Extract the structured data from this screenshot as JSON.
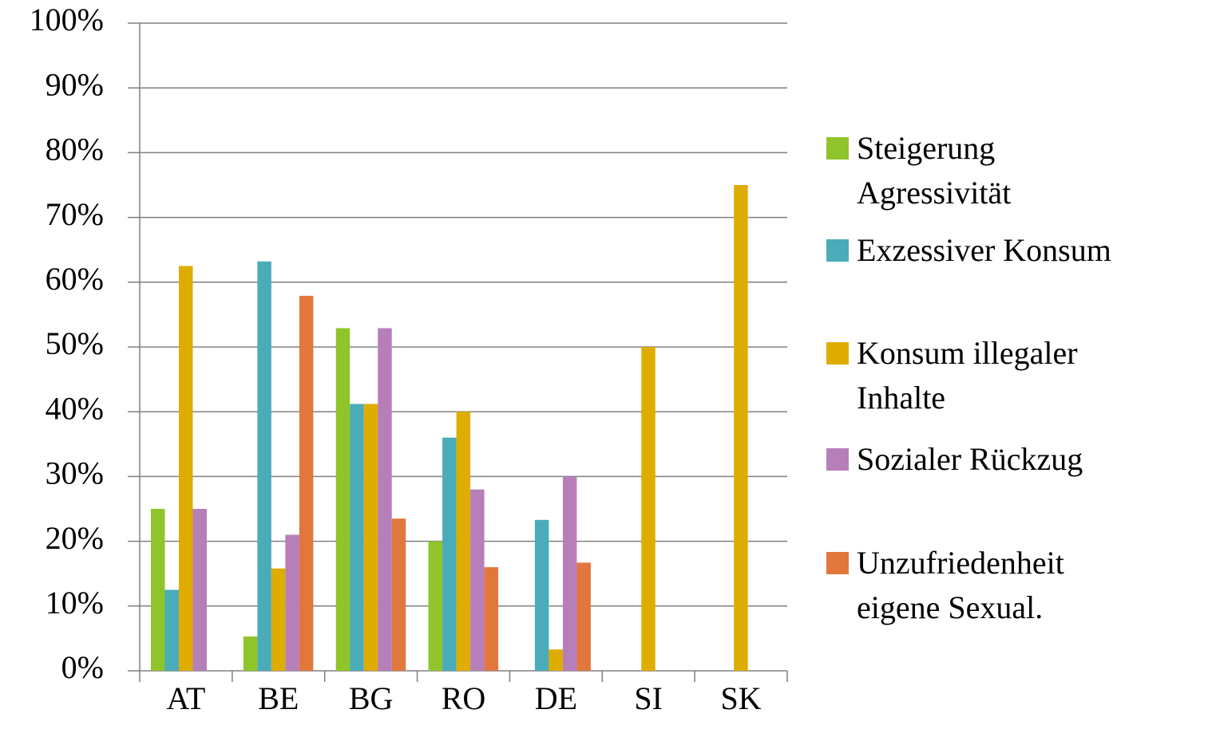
{
  "chart_data": {
    "type": "bar",
    "categories": [
      "AT",
      "BE",
      "BG",
      "RO",
      "DE",
      "SI",
      "SK"
    ],
    "series": [
      {
        "name": "Steigerung Agressivität",
        "color": "#8fc42a",
        "values": [
          25,
          5.3,
          52.9,
          20,
          0,
          0,
          0
        ]
      },
      {
        "name": "Exzessiver Konsum",
        "color": "#4aacb8",
        "values": [
          12.5,
          63.2,
          41.2,
          36,
          23.3,
          0,
          0
        ]
      },
      {
        "name": "Konsum illegaler Inhalte",
        "color": "#dfad00",
        "values": [
          62.5,
          15.8,
          41.2,
          40,
          3.3,
          50,
          75
        ]
      },
      {
        "name": "Sozialer Rückzug",
        "color": "#b77fb9",
        "values": [
          25,
          21,
          52.9,
          28,
          30,
          0,
          0
        ]
      },
      {
        "name": "Unzufriedenheit eigene Sexual.",
        "color": "#e2773d",
        "values": [
          0,
          57.9,
          23.5,
          16,
          16.7,
          0,
          0
        ]
      }
    ],
    "ylim": [
      0,
      100
    ],
    "yticks": [
      {
        "value": 0,
        "label": "0%"
      },
      {
        "value": 10,
        "label": "10%"
      },
      {
        "value": 20,
        "label": "20%"
      },
      {
        "value": 30,
        "label": "30%"
      },
      {
        "value": 40,
        "label": "40%"
      },
      {
        "value": 50,
        "label": "50%"
      },
      {
        "value": 60,
        "label": "60%"
      },
      {
        "value": 70,
        "label": "70%"
      },
      {
        "value": 80,
        "label": "80%"
      },
      {
        "value": 90,
        "label": "90%"
      },
      {
        "value": 100,
        "label": "100%"
      }
    ],
    "grid": true,
    "legend": "right"
  }
}
